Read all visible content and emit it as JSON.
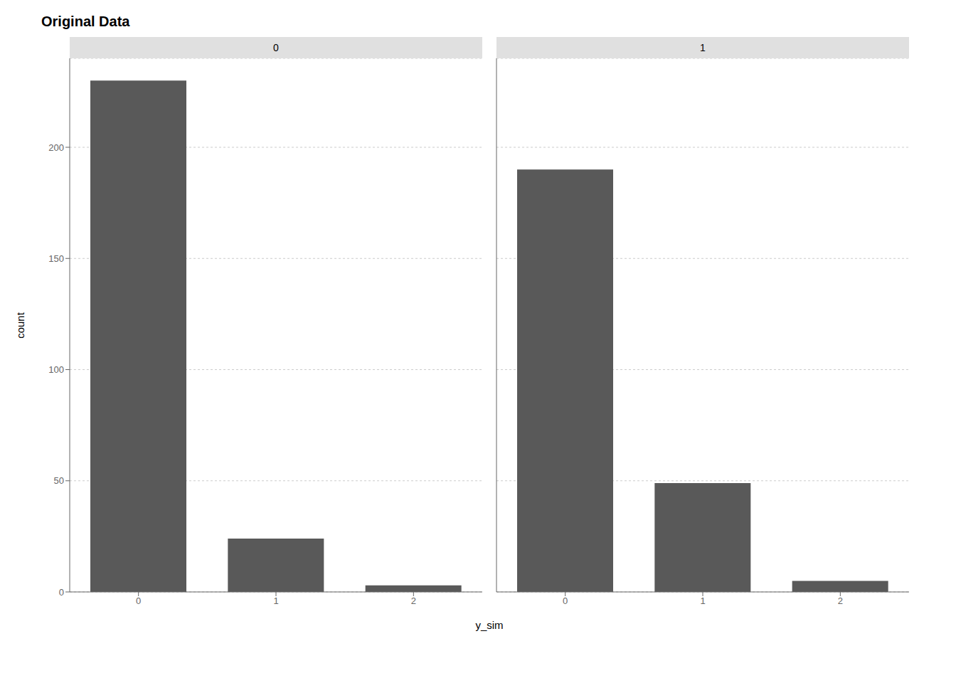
{
  "chart_data": [
    {
      "type": "bar",
      "title": "Original Data",
      "subtitle": "0",
      "xlabel": "y_sim",
      "ylabel": "count",
      "categories": [
        "0",
        "1",
        "2"
      ],
      "values": [
        230,
        24,
        3
      ],
      "color": "#595959",
      "ylim": [
        0,
        240
      ],
      "yticks": [
        0,
        50,
        100,
        150,
        200
      ],
      "grid": true
    },
    {
      "type": "bar",
      "subtitle": "1",
      "categories": [
        "0",
        "1",
        "2"
      ],
      "values": [
        190,
        49,
        5
      ],
      "color": "#595959",
      "ylim": [
        0,
        240
      ],
      "yticks": [
        0,
        50,
        100,
        150,
        200
      ],
      "grid": true,
      "tick_labels": "x"
    }
  ]
}
